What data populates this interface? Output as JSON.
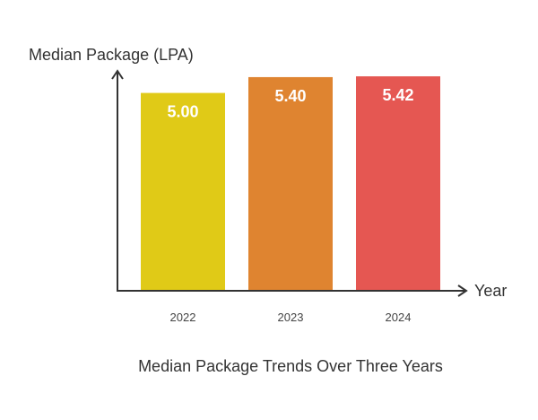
{
  "chart_data": {
    "type": "bar",
    "title": "Median Package Trends Over Three Years",
    "xlabel": "Year",
    "ylabel": "Median Package (LPA)",
    "categories": [
      "2022",
      "2023",
      "2024"
    ],
    "values": [
      5.0,
      5.4,
      5.42
    ],
    "data_labels": [
      "5.00",
      "5.40",
      "5.42"
    ],
    "colors": [
      "#E0CA17",
      "#DF8430",
      "#E55752"
    ],
    "ylim": [
      0,
      5.58
    ],
    "grid": false,
    "legend": "none"
  }
}
